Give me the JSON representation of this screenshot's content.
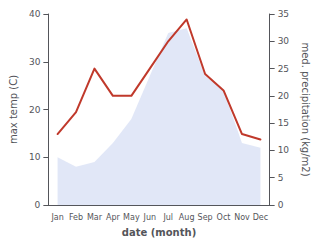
{
  "chart_data": {
    "type": "line",
    "categories": [
      "Jan",
      "Feb",
      "Mar",
      "Apr",
      "May",
      "Jun",
      "Jul",
      "Aug",
      "Sep",
      "Oct",
      "Nov",
      "Dec"
    ],
    "xlabel": "date (month)",
    "ylabel": "max temp (C)",
    "y2label": "med. precipitation (kg/m2)",
    "series": [
      {
        "type": "area",
        "color": "#c8d4f0",
        "values": [
          10.0,
          8.0,
          9.0,
          13.0,
          18.0,
          27.0,
          36.0,
          37.0,
          27.0,
          24.0,
          13.0,
          12.0
        ]
      },
      {
        "type": "line",
        "color": "#c0392b",
        "axis": "y2",
        "values": [
          13.0,
          17.0,
          25.0,
          20.0,
          20.0,
          25.0,
          30.0,
          34.0,
          24.0,
          21.0,
          13.0,
          12.0
        ]
      }
    ],
    "ylim": [
      0,
      40
    ],
    "yticks": [
      0,
      10,
      20,
      30,
      40
    ],
    "y2lim": [
      0,
      35
    ],
    "y2ticks": [
      0,
      5,
      10,
      15,
      20,
      25,
      30,
      35
    ],
    "grid": false
  }
}
